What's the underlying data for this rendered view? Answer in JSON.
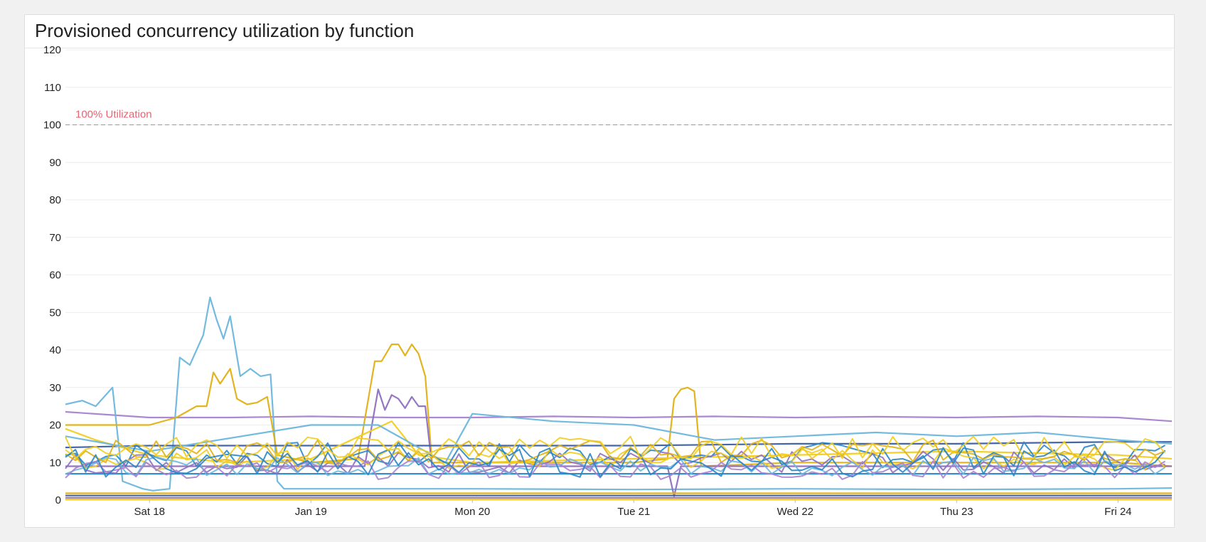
{
  "chart_data": {
    "type": "line",
    "title": "Provisioned concurrency utilization by function",
    "xlabel": "",
    "ylabel": "",
    "ylim": [
      0,
      120
    ],
    "yticks": [
      0,
      10,
      20,
      30,
      40,
      50,
      60,
      70,
      80,
      90,
      100,
      110,
      120
    ],
    "x_range": [
      "2025-01-17T11:30",
      "2025-01-24T08:00"
    ],
    "x_ticks": [
      {
        "label": "Sat 18",
        "at": "2025-01-18T00:00"
      },
      {
        "label": "Jan 19",
        "at": "2025-01-19T00:00"
      },
      {
        "label": "Mon 20",
        "at": "2025-01-20T00:00"
      },
      {
        "label": "Tue 21",
        "at": "2025-01-21T00:00"
      },
      {
        "label": "Wed 22",
        "at": "2025-01-22T00:00"
      },
      {
        "label": "Thu 23",
        "at": "2025-01-23T00:00"
      },
      {
        "label": "Fri 24",
        "at": "2025-01-24T00:00"
      }
    ],
    "grid": true,
    "legend": "none",
    "reference_line": {
      "label": "100% Utilization",
      "value": 100,
      "color": "#e8636f"
    },
    "palette": {
      "light_blue": "#6bb6dd",
      "blue": "#2a86c5",
      "yellow": "#f2cd1f",
      "gold": "#e0b013",
      "purple": "#8e6fc0",
      "light_purple": "#a782cf",
      "dark_blue": "#3b5fa5"
    },
    "series": [
      {
        "color": "#a782cf",
        "points": [
          [
            "2025-01-17T11:30",
            23.5
          ],
          [
            "2025-01-18T00:00",
            22
          ],
          [
            "2025-01-18T12:00",
            22
          ],
          [
            "2025-01-19T00:00",
            22.3
          ],
          [
            "2025-01-19T12:00",
            22
          ],
          [
            "2025-01-20T00:00",
            22
          ],
          [
            "2025-01-20T12:00",
            22.3
          ],
          [
            "2025-01-21T00:00",
            22
          ],
          [
            "2025-01-21T12:00",
            22.3
          ],
          [
            "2025-01-22T00:00",
            22
          ],
          [
            "2025-01-22T12:00",
            22.2
          ],
          [
            "2025-01-23T00:00",
            22
          ],
          [
            "2025-01-23T12:00",
            22.3
          ],
          [
            "2025-01-24T00:00",
            22
          ],
          [
            "2025-01-24T08:00",
            21
          ]
        ]
      },
      {
        "color": "#6bb6dd",
        "points": [
          [
            "2025-01-17T11:30",
            25.5
          ],
          [
            "2025-01-17T14:00",
            26.5
          ],
          [
            "2025-01-17T16:00",
            25
          ],
          [
            "2025-01-17T18:30",
            30
          ],
          [
            "2025-01-17T20:00",
            5
          ],
          [
            "2025-01-17T23:00",
            3
          ],
          [
            "2025-01-18T00:30",
            2.5
          ],
          [
            "2025-01-18T03:00",
            3
          ],
          [
            "2025-01-18T04:30",
            38
          ],
          [
            "2025-01-18T06:00",
            36
          ],
          [
            "2025-01-18T08:00",
            44
          ],
          [
            "2025-01-18T09:00",
            54
          ],
          [
            "2025-01-18T10:00",
            48
          ],
          [
            "2025-01-18T11:00",
            43
          ],
          [
            "2025-01-18T12:00",
            49
          ],
          [
            "2025-01-18T13:30",
            33
          ],
          [
            "2025-01-18T15:00",
            35
          ],
          [
            "2025-01-18T16:30",
            33
          ],
          [
            "2025-01-18T18:00",
            33.5
          ],
          [
            "2025-01-18T19:00",
            5
          ],
          [
            "2025-01-18T20:00",
            3
          ],
          [
            "2025-01-19T00:00",
            3
          ],
          [
            "2025-01-19T12:00",
            3
          ],
          [
            "2025-01-20T00:00",
            3
          ],
          [
            "2025-01-21T00:00",
            2.8
          ],
          [
            "2025-01-22T00:00",
            3
          ],
          [
            "2025-01-23T00:00",
            2.8
          ],
          [
            "2025-01-24T00:00",
            3
          ],
          [
            "2025-01-24T08:00",
            3.2
          ]
        ]
      },
      {
        "color": "#e0b013",
        "points": [
          [
            "2025-01-17T11:30",
            20
          ],
          [
            "2025-01-18T00:00",
            20
          ],
          [
            "2025-01-18T04:00",
            22
          ],
          [
            "2025-01-18T07:00",
            25
          ],
          [
            "2025-01-18T08:30",
            25
          ],
          [
            "2025-01-18T09:30",
            34
          ],
          [
            "2025-01-18T10:30",
            31
          ],
          [
            "2025-01-18T12:00",
            35
          ],
          [
            "2025-01-18T13:00",
            27
          ],
          [
            "2025-01-18T14:30",
            25.5
          ],
          [
            "2025-01-18T16:00",
            26
          ],
          [
            "2025-01-18T17:30",
            27.5
          ],
          [
            "2025-01-18T19:00",
            12
          ],
          [
            "2025-01-19T00:00",
            10
          ],
          [
            "2025-01-19T07:00",
            11
          ],
          [
            "2025-01-19T09:30",
            37
          ],
          [
            "2025-01-19T10:30",
            37
          ],
          [
            "2025-01-19T12:00",
            41.5
          ],
          [
            "2025-01-19T13:00",
            41.5
          ],
          [
            "2025-01-19T14:00",
            38.5
          ],
          [
            "2025-01-19T15:00",
            41.5
          ],
          [
            "2025-01-19T16:00",
            39
          ],
          [
            "2025-01-19T17:00",
            33
          ],
          [
            "2025-01-19T18:00",
            10
          ],
          [
            "2025-01-20T00:00",
            10
          ],
          [
            "2025-01-20T12:00",
            10
          ],
          [
            "2025-01-21T00:00",
            10
          ],
          [
            "2025-01-21T05:00",
            11
          ],
          [
            "2025-01-21T06:00",
            27
          ],
          [
            "2025-01-21T07:00",
            29.5
          ],
          [
            "2025-01-21T08:00",
            30
          ],
          [
            "2025-01-21T09:00",
            29
          ],
          [
            "2025-01-21T10:00",
            9
          ],
          [
            "2025-01-22T00:00",
            10
          ],
          [
            "2025-01-23T00:00",
            10
          ],
          [
            "2025-01-24T00:00",
            10
          ],
          [
            "2025-01-24T08:00",
            9
          ]
        ]
      },
      {
        "color": "#8e6fc0",
        "points": [
          [
            "2025-01-17T11:30",
            9
          ],
          [
            "2025-01-18T00:00",
            9
          ],
          [
            "2025-01-19T00:00",
            9
          ],
          [
            "2025-01-19T08:00",
            9
          ],
          [
            "2025-01-19T10:00",
            29.5
          ],
          [
            "2025-01-19T11:00",
            24
          ],
          [
            "2025-01-19T12:00",
            28
          ],
          [
            "2025-01-19T13:00",
            27
          ],
          [
            "2025-01-19T14:00",
            24.5
          ],
          [
            "2025-01-19T15:00",
            27.5
          ],
          [
            "2025-01-19T16:00",
            25
          ],
          [
            "2025-01-19T17:00",
            25
          ],
          [
            "2025-01-19T18:00",
            9
          ],
          [
            "2025-01-20T00:00",
            9
          ],
          [
            "2025-01-21T00:00",
            9
          ],
          [
            "2025-01-21T05:00",
            9
          ],
          [
            "2025-01-21T06:00",
            1
          ],
          [
            "2025-01-21T07:00",
            9
          ],
          [
            "2025-01-22T00:00",
            9
          ],
          [
            "2025-01-23T00:00",
            9
          ],
          [
            "2025-01-24T00:00",
            9
          ],
          [
            "2025-01-24T08:00",
            9
          ]
        ]
      },
      {
        "color": "#3b5fa5",
        "points": [
          [
            "2025-01-17T11:30",
            14
          ],
          [
            "2025-01-18T00:00",
            14.5
          ],
          [
            "2025-01-19T00:00",
            14.5
          ],
          [
            "2025-01-20T00:00",
            14.5
          ],
          [
            "2025-01-21T00:00",
            14.5
          ],
          [
            "2025-01-22T00:00",
            15
          ],
          [
            "2025-01-23T00:00",
            15
          ],
          [
            "2025-01-24T00:00",
            15.5
          ],
          [
            "2025-01-24T08:00",
            15.5
          ]
        ]
      },
      {
        "color": "#2a86c5",
        "points": [
          [
            "2025-01-17T11:30",
            7
          ],
          [
            "2025-01-18T00:00",
            7
          ],
          [
            "2025-01-19T00:00",
            7
          ],
          [
            "2025-01-20T00:00",
            7
          ],
          [
            "2025-01-21T00:00",
            7
          ],
          [
            "2025-01-22T00:00",
            7
          ],
          [
            "2025-01-23T00:00",
            7
          ],
          [
            "2025-01-24T00:00",
            7
          ],
          [
            "2025-01-24T08:00",
            7
          ]
        ]
      },
      {
        "color": "#f2cd1f",
        "points": [
          [
            "2025-01-17T11:30",
            19
          ],
          [
            "2025-01-17T16:00",
            16
          ],
          [
            "2025-01-18T00:00",
            12
          ],
          [
            "2025-01-18T12:00",
            10
          ],
          [
            "2025-01-19T00:00",
            11
          ],
          [
            "2025-01-19T12:00",
            21
          ],
          [
            "2025-01-19T16:00",
            12
          ],
          [
            "2025-01-20T00:00",
            10
          ],
          [
            "2025-01-21T00:00",
            11
          ],
          [
            "2025-01-22T00:00",
            12
          ],
          [
            "2025-01-23T00:00",
            13
          ],
          [
            "2025-01-24T00:00",
            12
          ],
          [
            "2025-01-24T08:00",
            11
          ]
        ]
      },
      {
        "color": "#6bb6dd",
        "points": [
          [
            "2025-01-17T11:30",
            17
          ],
          [
            "2025-01-18T00:00",
            13
          ],
          [
            "2025-01-19T00:00",
            20
          ],
          [
            "2025-01-19T10:00",
            20
          ],
          [
            "2025-01-19T20:00",
            10
          ],
          [
            "2025-01-20T00:00",
            23
          ],
          [
            "2025-01-20T12:00",
            21
          ],
          [
            "2025-01-21T00:00",
            20
          ],
          [
            "2025-01-21T12:00",
            16
          ],
          [
            "2025-01-22T00:00",
            17
          ],
          [
            "2025-01-22T12:00",
            18
          ],
          [
            "2025-01-23T00:00",
            17
          ],
          [
            "2025-01-23T12:00",
            18
          ],
          [
            "2025-01-24T00:00",
            16
          ],
          [
            "2025-01-24T08:00",
            15
          ]
        ]
      },
      {
        "color": "#3b5fa5",
        "points": [
          [
            "2025-01-17T11:30",
            1.2
          ],
          [
            "2025-01-24T08:00",
            1.2
          ]
        ]
      },
      {
        "color": "#e0b013",
        "points": [
          [
            "2025-01-17T11:30",
            1.8
          ],
          [
            "2025-01-24T08:00",
            1.8
          ]
        ]
      },
      {
        "color": "#8e6fc0",
        "points": [
          [
            "2025-01-17T11:30",
            0.6
          ],
          [
            "2025-01-24T08:00",
            0.6
          ]
        ]
      },
      {
        "color": "#f2cd1f",
        "points": [
          [
            "2025-01-17T11:30",
            0.2
          ],
          [
            "2025-01-24T08:00",
            0.2
          ]
        ]
      }
    ]
  }
}
